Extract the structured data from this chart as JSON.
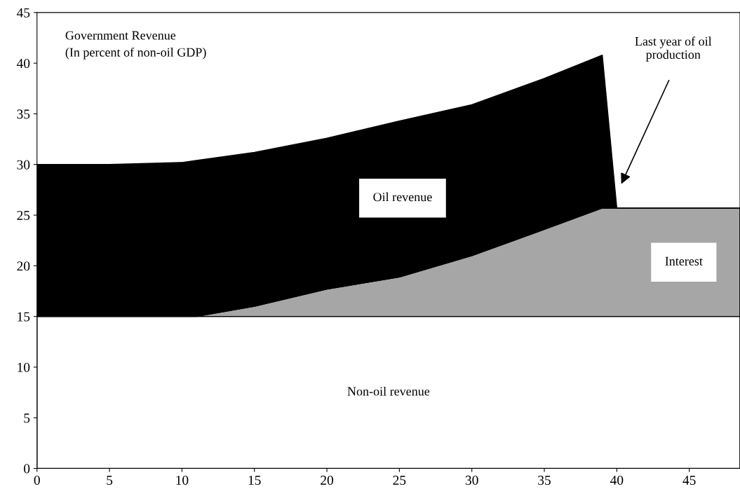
{
  "chart_data": {
    "type": "area",
    "stacked": true,
    "title": "Government Revenue\n(In percent of non-oil GDP)",
    "x": [
      0,
      5,
      10,
      11,
      15,
      20,
      25,
      30,
      35,
      39,
      40,
      45,
      48.5
    ],
    "series": [
      {
        "name": "Non-oil revenue",
        "color": "#ffffff",
        "values": [
          15,
          15,
          15,
          15,
          15,
          15,
          15,
          15,
          15,
          15,
          15,
          15,
          15
        ]
      },
      {
        "name": "Interest",
        "color": "#a6a6a6",
        "values": [
          0,
          0,
          0,
          0,
          1,
          2.7,
          3.9,
          6,
          8.6,
          10.7,
          10.7,
          10.7,
          10.7
        ]
      },
      {
        "name": "Oil revenue",
        "color": "#000000",
        "values": [
          15,
          15,
          15.2,
          15.4,
          15.2,
          14.9,
          15.4,
          14.9,
          14.9,
          15.1,
          0,
          0,
          0
        ]
      }
    ],
    "annotations": [
      "Last year of oil\nproduction"
    ],
    "xlim": [
      0,
      48.5
    ],
    "xticks": [
      0,
      5,
      10,
      15,
      20,
      25,
      30,
      35,
      40,
      45
    ],
    "ylim": [
      0,
      45
    ],
    "yticks": [
      0,
      5,
      10,
      15,
      20,
      25,
      30,
      35,
      40,
      45
    ],
    "grid": false,
    "legend": false
  }
}
